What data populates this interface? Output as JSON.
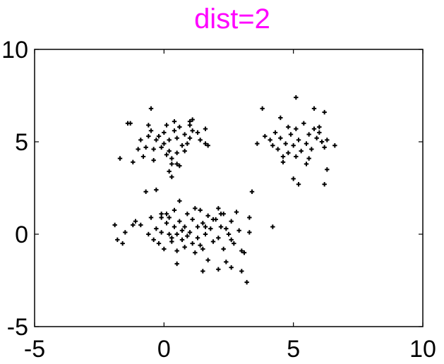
{
  "chart_data": {
    "type": "scatter",
    "title": "dist=2",
    "title_color": "#ff00ff",
    "marker_color": "#000000",
    "xlabel": "",
    "ylabel": "",
    "xlim": [
      -5,
      10
    ],
    "ylim": [
      -5,
      10
    ],
    "x_ticks": [
      "-5",
      "0",
      "5",
      "10"
    ],
    "y_ticks": [
      "-5",
      "0",
      "5",
      "10"
    ],
    "x_tick_values": [
      -5,
      0,
      5,
      10
    ],
    "y_tick_values": [
      -5,
      0,
      5,
      10
    ],
    "grid": false,
    "series": [
      {
        "points": [
          [
            -1.4,
            6.0
          ],
          [
            -1.3,
            6.0
          ],
          [
            -0.5,
            6.8
          ],
          [
            0.1,
            5.9
          ],
          [
            0.4,
            6.1
          ],
          [
            1.1,
            6.2
          ],
          [
            1.0,
            6.1
          ],
          [
            -1.7,
            4.1
          ],
          [
            -1.2,
            3.9
          ],
          [
            -1.0,
            4.6
          ],
          [
            -0.9,
            5.1
          ],
          [
            -0.6,
            5.9
          ],
          [
            -0.5,
            5.6
          ],
          [
            -0.4,
            4.6
          ],
          [
            -0.3,
            5.1
          ],
          [
            -0.2,
            5.3
          ],
          [
            -0.1,
            4.7
          ],
          [
            0.0,
            5.5
          ],
          [
            0.0,
            4.9
          ],
          [
            0.1,
            4.3
          ],
          [
            0.2,
            5.1
          ],
          [
            0.2,
            4.5
          ],
          [
            0.3,
            4.1
          ],
          [
            0.4,
            5.6
          ],
          [
            0.5,
            5.2
          ],
          [
            0.5,
            4.4
          ],
          [
            0.6,
            5.8
          ],
          [
            0.7,
            4.8
          ],
          [
            0.8,
            5.4
          ],
          [
            0.9,
            4.9
          ],
          [
            1.0,
            5.9
          ],
          [
            1.0,
            5.2
          ],
          [
            1.1,
            5.6
          ],
          [
            1.4,
            5.1
          ],
          [
            1.6,
            5.7
          ],
          [
            1.6,
            4.9
          ],
          [
            1.7,
            4.8
          ],
          [
            0.3,
            3.8
          ],
          [
            0.5,
            3.8
          ],
          [
            0.6,
            3.7
          ],
          [
            0.3,
            3.1
          ],
          [
            -0.4,
            4.0
          ],
          [
            -0.6,
            5.3
          ],
          [
            -0.7,
            4.7
          ],
          [
            -0.8,
            4.2
          ],
          [
            0.2,
            3.4
          ],
          [
            0.8,
            4.5
          ],
          [
            1.3,
            5.5
          ],
          [
            3.8,
            6.8
          ],
          [
            5.1,
            7.4
          ],
          [
            5.8,
            6.8
          ],
          [
            6.2,
            6.6
          ],
          [
            3.6,
            4.9
          ],
          [
            3.9,
            5.3
          ],
          [
            4.1,
            5.1
          ],
          [
            4.3,
            5.5
          ],
          [
            4.4,
            4.6
          ],
          [
            4.5,
            6.3
          ],
          [
            4.5,
            5.2
          ],
          [
            4.6,
            4.2
          ],
          [
            4.7,
            4.9
          ],
          [
            4.8,
            5.8
          ],
          [
            4.8,
            4.4
          ],
          [
            4.9,
            5.4
          ],
          [
            5.0,
            4.8
          ],
          [
            5.1,
            5.7
          ],
          [
            5.1,
            4.2
          ],
          [
            5.2,
            5.1
          ],
          [
            5.3,
            4.5
          ],
          [
            5.4,
            6.0
          ],
          [
            5.5,
            4.9
          ],
          [
            5.5,
            3.8
          ],
          [
            5.6,
            5.4
          ],
          [
            5.7,
            4.6
          ],
          [
            5.8,
            5.7
          ],
          [
            5.9,
            5.2
          ],
          [
            6.0,
            5.5
          ],
          [
            6.1,
            5.0
          ],
          [
            6.2,
            4.7
          ],
          [
            6.3,
            5.1
          ],
          [
            6.6,
            4.8
          ],
          [
            6.3,
            3.5
          ],
          [
            6.2,
            2.7
          ],
          [
            5.0,
            3.0
          ],
          [
            5.2,
            2.7
          ],
          [
            4.2,
            4.8
          ],
          [
            4.6,
            3.9
          ],
          [
            5.6,
            4.1
          ],
          [
            6.0,
            5.8
          ],
          [
            -1.9,
            0.5
          ],
          [
            -1.8,
            -0.3
          ],
          [
            -1.6,
            -0.5
          ],
          [
            -1.5,
            0.1
          ],
          [
            -1.2,
            0.5
          ],
          [
            -1.1,
            0.7
          ],
          [
            -0.9,
            0.5
          ],
          [
            -0.7,
            2.3
          ],
          [
            -0.6,
            0.0
          ],
          [
            -0.5,
            0.9
          ],
          [
            -0.4,
            -0.3
          ],
          [
            -0.3,
            0.3
          ],
          [
            -0.2,
            -0.5
          ],
          [
            -0.1,
            0.1
          ],
          [
            -0.1,
            1.1
          ],
          [
            0.0,
            -0.8
          ],
          [
            0.1,
            0.6
          ],
          [
            0.2,
            0.0
          ],
          [
            0.2,
            0.9
          ],
          [
            0.3,
            -0.4
          ],
          [
            0.4,
            1.3
          ],
          [
            0.4,
            0.4
          ],
          [
            0.5,
            -0.9
          ],
          [
            0.5,
            0.0
          ],
          [
            0.6,
            1.8
          ],
          [
            0.6,
            0.7
          ],
          [
            0.7,
            -0.3
          ],
          [
            0.8,
            0.4
          ],
          [
            0.8,
            -0.7
          ],
          [
            0.9,
            1.1
          ],
          [
            1.0,
            0.1
          ],
          [
            1.1,
            -0.5
          ],
          [
            1.1,
            0.8
          ],
          [
            1.2,
            -1.0
          ],
          [
            1.3,
            0.4
          ],
          [
            1.3,
            -0.2
          ],
          [
            1.4,
            1.3
          ],
          [
            1.5,
            0.6
          ],
          [
            1.5,
            -0.8
          ],
          [
            1.6,
            0.0
          ],
          [
            1.7,
            1.0
          ],
          [
            1.7,
            -1.4
          ],
          [
            1.8,
            0.3
          ],
          [
            1.9,
            -0.4
          ],
          [
            2.0,
            0.8
          ],
          [
            2.1,
            1.4
          ],
          [
            2.1,
            -0.2
          ],
          [
            2.2,
            0.4
          ],
          [
            2.3,
            -0.8
          ],
          [
            2.3,
            1.1
          ],
          [
            2.4,
            -1.5
          ],
          [
            2.5,
            0.0
          ],
          [
            2.6,
            0.7
          ],
          [
            2.7,
            -0.5
          ],
          [
            2.8,
            1.2
          ],
          [
            2.9,
            0.2
          ],
          [
            3.0,
            -0.9
          ],
          [
            3.1,
            -1.0
          ],
          [
            3.2,
            -2.6
          ],
          [
            3.3,
            0.1
          ],
          [
            3.4,
            2.3
          ],
          [
            3.3,
            0.9
          ],
          [
            4.2,
            0.4
          ],
          [
            2.6,
            -1.8
          ],
          [
            2.1,
            -1.9
          ],
          [
            1.5,
            -2.0
          ],
          [
            0.5,
            -1.6
          ],
          [
            -0.1,
            0.9
          ],
          [
            0.1,
            1.1
          ],
          [
            1.2,
            1.4
          ],
          [
            2.2,
            1.1
          ],
          [
            0.9,
            -0.1
          ],
          [
            1.6,
            0.4
          ],
          [
            2.6,
            -0.3
          ],
          [
            0.3,
            -0.2
          ],
          [
            1.9,
            0.8
          ],
          [
            3.0,
            -2.0
          ],
          [
            -0.3,
            2.4
          ],
          [
            0.7,
            0.2
          ],
          [
            1.4,
            -0.6
          ],
          [
            2.4,
            0.3
          ]
        ]
      }
    ]
  }
}
